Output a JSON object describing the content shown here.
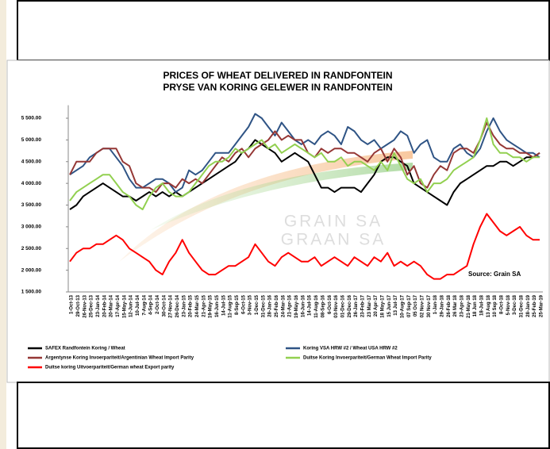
{
  "chart_data": {
    "type": "line",
    "title": "PRICES OF WHEAT DELIVERED IN RANDFONTEIN",
    "subtitle": "PRYSE VAN KORING GELEWER IN RANDFONTEIN",
    "watermark": [
      "GRAIN SA",
      "GRAAN SA"
    ],
    "annotation": "Source: Grain SA",
    "categories": [
      "1-Oct-13",
      "29-Oct-13",
      "26-Nov-13",
      "25-Dec-13",
      "23-Jan-14",
      "20-Feb-14",
      "20-Mar-14",
      "17-Apr-14",
      "15-May-14",
      "12-Jun-14",
      "10-Jul-14",
      "7-Aug-14",
      "4-Sep-14",
      "2-Oct-14",
      "30-Oct-14",
      "27-Nov-14",
      "26-Dec-14",
      "23-Jan-15",
      "20-Feb-15",
      "24-Mar-15",
      "21-Apr-15",
      "19-May-15",
      "16-Jun-15",
      "14-Jul-15",
      "11-Aug-15",
      "8-Sep-15",
      "6-Oct-15",
      "3-Nov-15",
      "1-Dec-15",
      "31-Dec-15",
      "28-Jan-16",
      "25-Feb-16",
      "24-Mar-16",
      "21-Apr-16",
      "19-May-16",
      "16-Jun-16",
      "14-Jul-16",
      "11-Aug-16",
      "08-Sep-16",
      "6-Oct-16",
      "03-Nov-16",
      "01-Dec-16",
      "29-Dec-16",
      "26-Jan-17",
      "23-Feb-17",
      "23 Mar-17",
      "20 Apr-17",
      "18 May-17",
      "15 Jun-17",
      "13 Jul-17",
      "10-Aug-17",
      "07 Sep-17",
      "05 Oct-17",
      "02 Nov-17",
      "30 Nov-17",
      "1-Jan-18",
      "29-Jan-18",
      "26-Feb-18",
      "26 Mar 18",
      "23-Apr-18",
      "21-May-18",
      "18 Jun 18",
      "18-Jul-18",
      "13 Aug 18",
      "10 Sep 18",
      "8-Oct-18",
      "5-Nov-18",
      "3-Dec-18",
      "31-Dec-18",
      "28-Jan-19",
      "25-Feb-19",
      "25-Mar-19"
    ],
    "series": [
      {
        "name": "SAFEX  Randfontein Koring / Wheat",
        "color": "#000000",
        "values": [
          3400,
          3500,
          3700,
          3800,
          3900,
          4000,
          3900,
          3800,
          3700,
          3700,
          3600,
          3700,
          3800,
          3700,
          3800,
          3700,
          3800,
          3700,
          3800,
          3900,
          4000,
          4100,
          4200,
          4300,
          4400,
          4500,
          4700,
          4800,
          5000,
          4900,
          4800,
          4700,
          4500,
          4600,
          4700,
          4600,
          4500,
          4200,
          3900,
          3900,
          3800,
          3900,
          3900,
          3900,
          3800,
          4000,
          4200,
          4500,
          4600,
          4600,
          4500,
          4400,
          4000,
          3900,
          3800,
          3700,
          3600,
          3500,
          3800,
          4000,
          4100,
          4200,
          4300,
          4400,
          4400,
          4500,
          4500,
          4400,
          4500,
          4600,
          4600,
          4700
        ]
      },
      {
        "name": "Koring VSA HRW #2 / Wheat USA HRW #2",
        "color": "#2f5485",
        "values": [
          4200,
          4300,
          4400,
          4600,
          4700,
          4800,
          4800,
          4600,
          4400,
          4100,
          3900,
          3900,
          4000,
          4100,
          4100,
          4000,
          3800,
          3900,
          4300,
          4200,
          4300,
          4500,
          4700,
          4700,
          4700,
          4900,
          5100,
          5300,
          5600,
          5500,
          5300,
          5100,
          5400,
          5200,
          5000,
          4900,
          5000,
          4900,
          5100,
          5200,
          5100,
          4900,
          5300,
          5200,
          5000,
          4900,
          5000,
          4800,
          4900,
          5000,
          5200,
          5100,
          4700,
          4900,
          5000,
          4600,
          4500,
          4500,
          4800,
          4900,
          4700,
          4600,
          4800,
          5200,
          5500,
          5200,
          5000,
          4900,
          4800,
          4700,
          4700,
          4600
        ]
      },
      {
        "name": "Argentynse Koring Invoerpariteit/Argentinian Wheat Import Parity",
        "color": "#953735",
        "values": [
          4200,
          4500,
          4500,
          4500,
          4700,
          4800,
          4800,
          4800,
          4500,
          4400,
          4000,
          3900,
          3900,
          3800,
          4000,
          4000,
          3900,
          4100,
          4000,
          4100,
          4000,
          4200,
          4400,
          4600,
          4500,
          4700,
          4800,
          4600,
          4800,
          4900,
          5000,
          5200,
          5000,
          5100,
          5000,
          5000,
          4700,
          4600,
          4800,
          4700,
          4800,
          4800,
          4700,
          4700,
          4600,
          4500,
          4700,
          4800,
          4500,
          4800,
          4600,
          4200,
          4400,
          4000,
          3900,
          4200,
          4400,
          4300,
          4700,
          4800,
          4800,
          4700,
          5000,
          5400,
          5100,
          4900,
          4800,
          4800,
          4700,
          4700,
          4600,
          4700
        ]
      },
      {
        "name": "Duitse Koring Invoerpariteit/German Wheat Import Parity",
        "color": "#92d050",
        "values": [
          3600,
          3800,
          3900,
          4000,
          4100,
          4200,
          4200,
          4000,
          3800,
          3700,
          3500,
          3400,
          3700,
          3900,
          4000,
          3800,
          3700,
          3700,
          3800,
          4000,
          4200,
          4400,
          4500,
          4500,
          4600,
          4800,
          4700,
          4800,
          4900,
          5000,
          4800,
          4900,
          4700,
          4800,
          4900,
          4800,
          4700,
          4600,
          4700,
          4500,
          4500,
          4600,
          4400,
          4500,
          4500,
          4400,
          4300,
          4500,
          4300,
          4700,
          4400,
          4100,
          4000,
          4100,
          3800,
          4000,
          4000,
          4100,
          4300,
          4400,
          4500,
          4600,
          5000,
          5500,
          4900,
          4700,
          4700,
          4600,
          4600,
          4500,
          4600,
          4600
        ]
      },
      {
        "name": "Duitse koring Uitvoerpariteit/German wheat Export parity",
        "color": "#ff0000",
        "values": [
          2200,
          2400,
          2500,
          2500,
          2600,
          2600,
          2700,
          2800,
          2700,
          2500,
          2400,
          2300,
          2200,
          2000,
          1900,
          2200,
          2400,
          2700,
          2400,
          2200,
          2000,
          1900,
          1900,
          2000,
          2100,
          2100,
          2200,
          2300,
          2600,
          2400,
          2200,
          2100,
          2300,
          2400,
          2300,
          2200,
          2200,
          2300,
          2100,
          2200,
          2300,
          2200,
          2100,
          2300,
          2200,
          2100,
          2300,
          2200,
          2400,
          2100,
          2200,
          2100,
          2200,
          2100,
          1900,
          1800,
          1800,
          1900,
          1900,
          2000,
          2100,
          2600,
          3000,
          3300,
          3100,
          2900,
          2800,
          2900,
          3000,
          2800,
          2700,
          2700
        ]
      }
    ],
    "ylim": [
      1500,
      5800
    ],
    "yticks": [
      {
        "value": 1500,
        "label": "1 500.00"
      },
      {
        "value": 2000,
        "label": "2 000.00"
      },
      {
        "value": 2500,
        "label": "2 500.00"
      },
      {
        "value": 3000,
        "label": "3 000.00"
      },
      {
        "value": 3500,
        "label": "3 500.00"
      },
      {
        "value": 4000,
        "label": "4 000.00"
      },
      {
        "value": 4500,
        "label": "4 500.00"
      },
      {
        "value": 5000,
        "label": "5 000.00"
      },
      {
        "value": 5500,
        "label": "5 500.00"
      }
    ],
    "grid": false
  }
}
